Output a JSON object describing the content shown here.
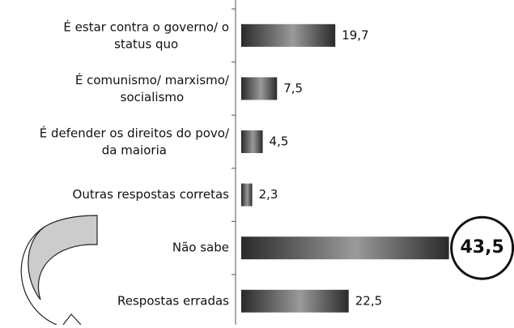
{
  "chart_data": {
    "type": "bar",
    "orientation": "horizontal",
    "categories": [
      "É estar contra o governo/ o\nstatus quo",
      "É comunismo/ marxismo/\nsocialismo",
      "É defender os direitos do povo/\nda maioria",
      "Outras respostas corretas",
      "Não sabe",
      "Respostas erradas"
    ],
    "values": [
      19.7,
      7.5,
      4.5,
      2.3,
      43.5,
      22.5
    ],
    "value_labels": [
      "19,7",
      "7,5",
      "4,5",
      "2,3",
      "43,5",
      "22,5"
    ],
    "highlight": 4
  }
}
